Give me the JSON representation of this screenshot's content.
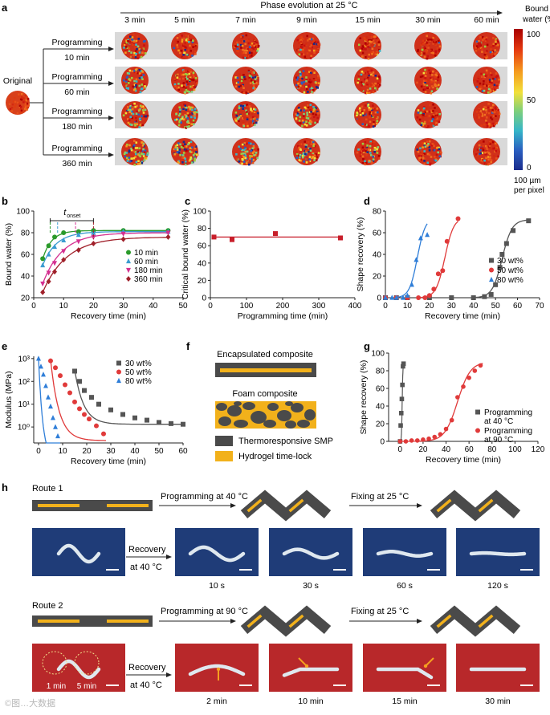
{
  "panel_labels": [
    "a",
    "b",
    "c",
    "d",
    "e",
    "f",
    "g",
    "h"
  ],
  "panel_a": {
    "header": "Phase evolution at 25 °C",
    "times": [
      "3 min",
      "5 min",
      "7 min",
      "9 min",
      "15 min",
      "30 min",
      "60 min"
    ],
    "original_label": "Original",
    "rows": [
      {
        "label": "Programming",
        "time": "10 min"
      },
      {
        "label": "Programming",
        "time": "60 min"
      },
      {
        "label": "Programming",
        "time": "180 min"
      },
      {
        "label": "Programming",
        "time": "360 min"
      }
    ],
    "colorbar": {
      "title_line1": "Bound",
      "title_line2": "water (%)",
      "ticks": [
        "100",
        "50",
        "0"
      ],
      "scale_line1": "100 µm",
      "scale_line2": "per pixel",
      "colors": [
        "#b00000",
        "#e63a10",
        "#f59a1e",
        "#f2e03a",
        "#7fd07a",
        "#36b6c8",
        "#2a5ec0",
        "#1a2c8c"
      ]
    }
  },
  "chart_data": [
    {
      "panel": "b",
      "type": "scatter",
      "title": "",
      "xlabel": "Recovery time (min)",
      "ylabel": "Bound water (%)",
      "xlim": [
        0,
        50
      ],
      "ylim": [
        20,
        100
      ],
      "xticks": [
        "0",
        "10",
        "20",
        "30",
        "40",
        "50"
      ],
      "yticks": [
        "20",
        "40",
        "60",
        "80",
        "100"
      ],
      "annotation": "t_onset",
      "series": [
        {
          "name": "10 min",
          "color": "#2a9a2a",
          "marker": "circle",
          "x": [
            3,
            5,
            7,
            10,
            15,
            20,
            30,
            45
          ],
          "y": [
            56,
            68,
            76,
            80,
            81,
            82,
            82,
            82
          ]
        },
        {
          "name": "60 min",
          "color": "#3a9bd0",
          "marker": "triangle",
          "x": [
            3,
            5,
            7,
            10,
            15,
            20,
            30,
            45
          ],
          "y": [
            50,
            60,
            67,
            73,
            78,
            80,
            81,
            81
          ]
        },
        {
          "name": "180 min",
          "color": "#d42f90",
          "marker": "triangle-down",
          "x": [
            3,
            5,
            7,
            10,
            15,
            20,
            30,
            45
          ],
          "y": [
            33,
            43,
            52,
            63,
            72,
            76,
            79,
            80
          ]
        },
        {
          "name": "360 min",
          "color": "#a0202a",
          "marker": "diamond",
          "x": [
            3,
            5,
            7,
            10,
            15,
            20,
            30,
            45
          ],
          "y": [
            25,
            35,
            44,
            55,
            64,
            70,
            74,
            76
          ]
        }
      ]
    },
    {
      "panel": "c",
      "type": "scatter",
      "xlabel": "Programming time (min)",
      "ylabel": "Critical bound water (%)",
      "xlim": [
        0,
        400
      ],
      "ylim": [
        0,
        100
      ],
      "xticks": [
        "0",
        "100",
        "200",
        "300",
        "400"
      ],
      "yticks": [
        "0",
        "20",
        "40",
        "60",
        "80",
        "100"
      ],
      "series": [
        {
          "name": "",
          "color": "#c81e2a",
          "marker": "square",
          "x": [
            10,
            60,
            180,
            360
          ],
          "y": [
            70,
            67,
            74,
            69
          ]
        }
      ]
    },
    {
      "panel": "d",
      "type": "scatter",
      "xlabel": "Recovery time (min)",
      "ylabel": "Shape recovery (%)",
      "xlim": [
        0,
        70
      ],
      "ylim": [
        0,
        80
      ],
      "xticks": [
        "0",
        "10",
        "20",
        "30",
        "40",
        "50",
        "60",
        "70"
      ],
      "yticks": [
        "0",
        "20",
        "40",
        "60",
        "80"
      ],
      "series": [
        {
          "name": "30 wt%",
          "color": "#555555",
          "marker": "square",
          "x": [
            0,
            5,
            10,
            20,
            30,
            40,
            45,
            48,
            50,
            52,
            53,
            55,
            58,
            65
          ],
          "y": [
            0,
            0,
            0,
            0,
            0,
            0,
            1,
            3,
            12,
            28,
            40,
            50,
            62,
            71
          ]
        },
        {
          "name": "50 wt%",
          "color": "#e03a3a",
          "marker": "circle",
          "x": [
            0,
            5,
            10,
            15,
            18,
            20,
            22,
            24,
            26,
            28,
            33
          ],
          "y": [
            0,
            0,
            0,
            0,
            0,
            2,
            8,
            22,
            25,
            52,
            73
          ]
        },
        {
          "name": "80 wt%",
          "color": "#2f7ed8",
          "marker": "triangle",
          "x": [
            0,
            3,
            5,
            8,
            10,
            12,
            14,
            16,
            19
          ],
          "y": [
            0,
            0,
            0,
            0,
            2,
            12,
            35,
            55,
            58
          ]
        }
      ]
    },
    {
      "panel": "e",
      "type": "scatter",
      "xlabel": "Recovery time (min)",
      "ylabel": "Modulus (MPa)",
      "xlim": [
        -2,
        60
      ],
      "ylim_log10": [
        -0.7,
        3.1
      ],
      "xticks": [
        "0",
        "10",
        "20",
        "30",
        "40",
        "50",
        "60"
      ],
      "yticks": [
        "10⁰",
        "10¹",
        "10²",
        "10³"
      ],
      "series": [
        {
          "name": "30 wt%",
          "color": "#555555",
          "marker": "square",
          "x": [
            15,
            17,
            19,
            22,
            25,
            30,
            35,
            40,
            45,
            50,
            55,
            60
          ],
          "log10_y": [
            2.45,
            2.0,
            1.6,
            1.3,
            1.0,
            0.75,
            0.55,
            0.4,
            0.3,
            0.2,
            0.15,
            0.12
          ]
        },
        {
          "name": "50 wt%",
          "color": "#e03a3a",
          "marker": "circle",
          "x": [
            5,
            7,
            9,
            11,
            13,
            15,
            17,
            19,
            21,
            24,
            27
          ],
          "log10_y": [
            2.9,
            2.6,
            2.25,
            1.85,
            1.5,
            1.1,
            0.8,
            0.55,
            0.35,
            0.05,
            -0.3
          ]
        },
        {
          "name": "80 wt%",
          "color": "#2f7ed8",
          "marker": "triangle",
          "x": [
            0,
            1,
            2,
            3,
            4,
            5,
            6,
            7,
            8
          ],
          "log10_y": [
            3.0,
            2.65,
            2.3,
            1.8,
            1.3,
            0.9,
            0.4,
            0.0,
            -0.4
          ]
        }
      ]
    },
    {
      "panel": "g",
      "type": "scatter",
      "xlabel": "Recovery time (min)",
      "ylabel": "Shape recovery (%)",
      "xlim": [
        -10,
        120
      ],
      "ylim": [
        0,
        100
      ],
      "xticks": [
        "0",
        "20",
        "40",
        "60",
        "80",
        "100",
        "120"
      ],
      "yticks": [
        "0",
        "20",
        "40",
        "60",
        "80",
        "100"
      ],
      "series": [
        {
          "name": "Programming at 40 °C",
          "color": "#555555",
          "marker": "square",
          "x": [
            0,
            0.5,
            1,
            1.5,
            2,
            2.5,
            3
          ],
          "y": [
            0,
            18,
            32,
            48,
            64,
            85,
            88
          ]
        },
        {
          "name": "Programming at 90 °C",
          "color": "#e03a3a",
          "marker": "circle",
          "x": [
            0,
            5,
            10,
            15,
            20,
            25,
            30,
            35,
            40,
            45,
            50,
            55,
            60,
            65,
            70
          ],
          "y": [
            0,
            0,
            1,
            1,
            2,
            3,
            5,
            8,
            14,
            24,
            50,
            62,
            72,
            80,
            86
          ]
        }
      ]
    }
  ],
  "panel_f": {
    "encapsulated": "Encapsulated composite",
    "foam": "Foam composite",
    "legend": [
      {
        "label": "Thermoresponsive SMP",
        "color": "#4a4a4a"
      },
      {
        "label": "Hydrogel time-lock",
        "color": "#f2b11b"
      }
    ]
  },
  "panel_h": {
    "route1": {
      "label": "Route 1",
      "programming": "Programming at 40 °C",
      "fixing": "Fixing at 25 °C",
      "recovery_line1": "Recovery",
      "recovery_line2": "at 40 °C",
      "times": [
        "10 s",
        "30 s",
        "60 s",
        "120 s"
      ],
      "photo_color": "#1f3c78"
    },
    "route2": {
      "label": "Route 2",
      "programming": "Programming at 90 °C",
      "fixing": "Fixing at 25 °C",
      "recovery_line1": "Recovery",
      "recovery_line2": "at 40 °C",
      "times": [
        "2 min",
        "10 min",
        "15 min",
        "30 min"
      ],
      "photo_labels": [
        "1 min",
        "5 min"
      ],
      "photo_color": "#b8282a"
    }
  },
  "watermark": "©图…大数据"
}
